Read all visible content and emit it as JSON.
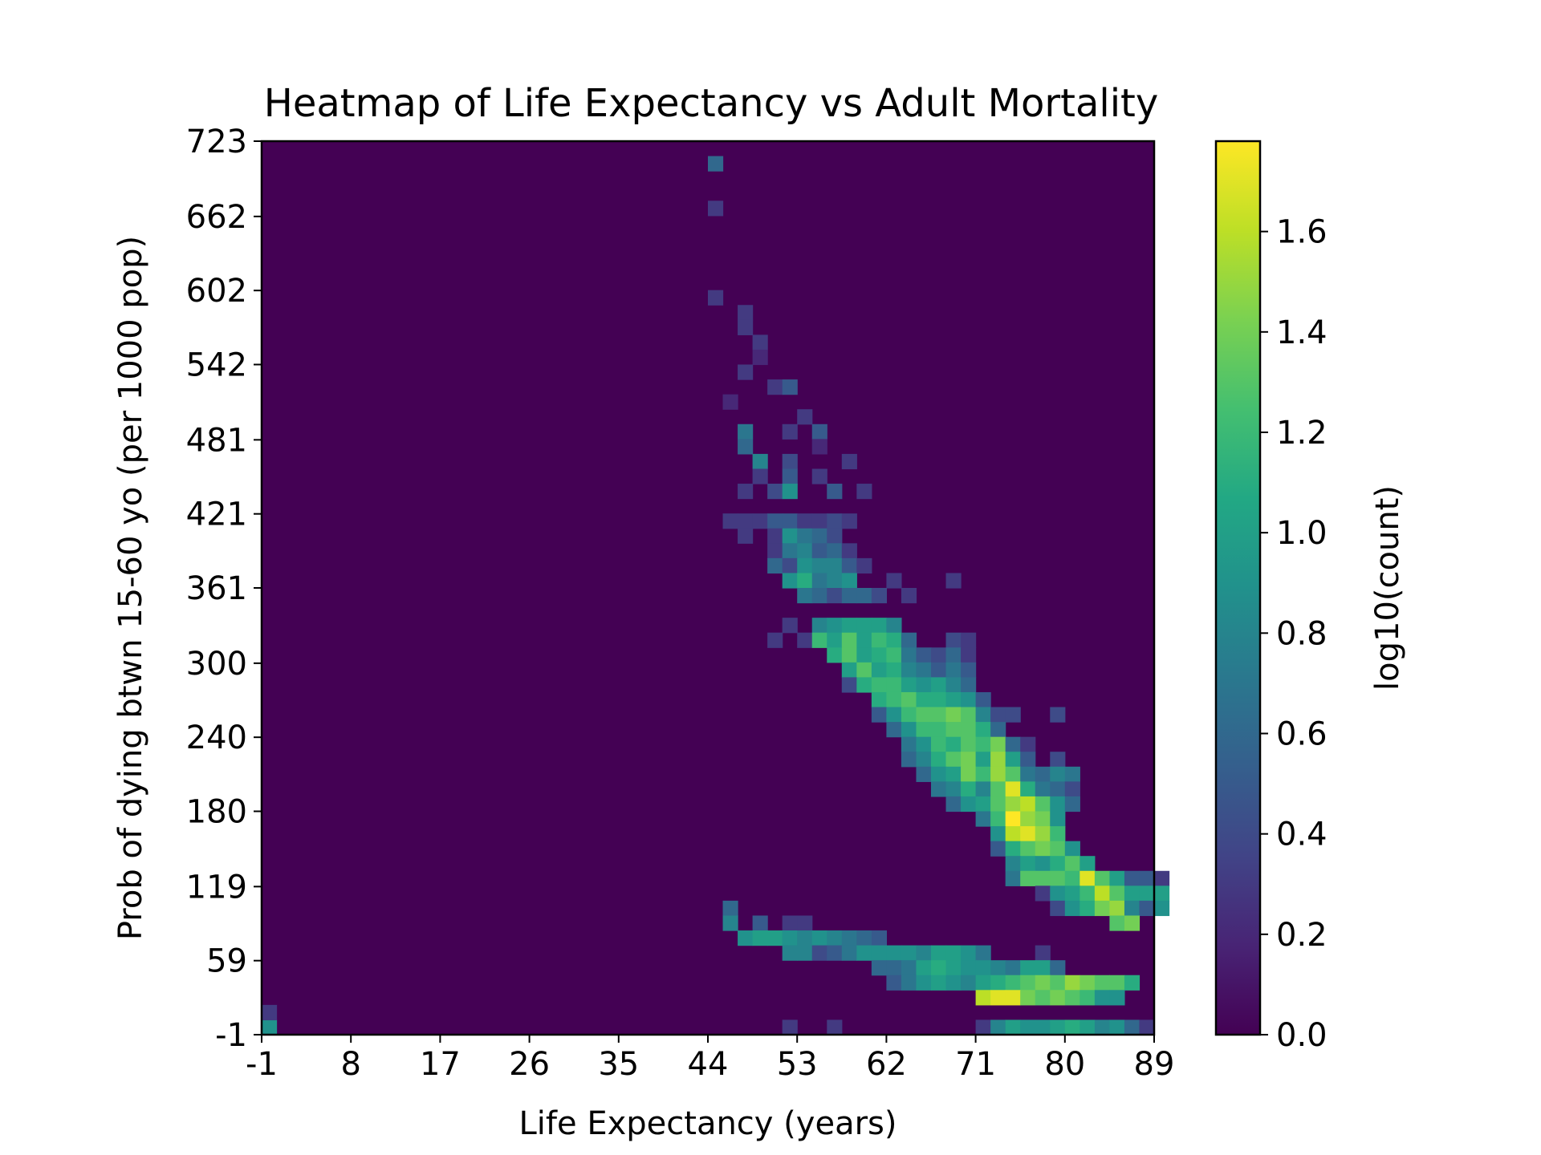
{
  "chart_data": {
    "type": "heatmap",
    "title": "Heatmap of Life Expectancy vs Adult Mortality",
    "xlabel": "Life Expectancy (years)",
    "ylabel": "Prob of dying btwn 15-60 yo (per 1000 pop)",
    "xlim": [
      -1,
      89
    ],
    "ylim": [
      -1,
      723
    ],
    "x_ticks": [
      "-1",
      "8",
      "17",
      "26",
      "35",
      "44",
      "53",
      "62",
      "71",
      "80",
      "89"
    ],
    "y_ticks": [
      "-1",
      "59",
      "119",
      "180",
      "240",
      "300",
      "361",
      "421",
      "481",
      "542",
      "602",
      "662",
      "723"
    ],
    "bins": [
      60,
      60
    ],
    "bin_width_x": 1.5,
    "bin_width_y": 12.07,
    "value_transform": "log10(count)",
    "cells_note": "each cell = [x_bin_index, y_bin_index, log10(count)] , x bin i spans -1+1.5*i years, y bin j spans -1+12.07*j deaths per 1000",
    "cells": [
      [
        30,
        58,
        0.6
      ],
      [
        30,
        55,
        0.3
      ],
      [
        30,
        49,
        0.3
      ],
      [
        32,
        48,
        0.3
      ],
      [
        32,
        47,
        0.3
      ],
      [
        33,
        46,
        0.3
      ],
      [
        33,
        45,
        0.2
      ],
      [
        32,
        44,
        0.3
      ],
      [
        34,
        43,
        0.3
      ],
      [
        35,
        43,
        0.5
      ],
      [
        31,
        42,
        0.2
      ],
      [
        36,
        41,
        0.3
      ],
      [
        35,
        40,
        0.3
      ],
      [
        37,
        40,
        0.5
      ],
      [
        37,
        39,
        0.2
      ],
      [
        32,
        40,
        0.7
      ],
      [
        32,
        39,
        0.6
      ],
      [
        33,
        38,
        0.8
      ],
      [
        35,
        38,
        0.4
      ],
      [
        33,
        37,
        0.3
      ],
      [
        35,
        37,
        0.5
      ],
      [
        37,
        37,
        0.3
      ],
      [
        39,
        38,
        0.3
      ],
      [
        32,
        36,
        0.3
      ],
      [
        34,
        36,
        0.4
      ],
      [
        35,
        36,
        0.9
      ],
      [
        38,
        36,
        0.5
      ],
      [
        40,
        36,
        0.3
      ],
      [
        31,
        34,
        0.3
      ],
      [
        32,
        34,
        0.3
      ],
      [
        33,
        34,
        0.3
      ],
      [
        34,
        34,
        0.5
      ],
      [
        35,
        34,
        0.5
      ],
      [
        36,
        34,
        0.3
      ],
      [
        37,
        34,
        0.3
      ],
      [
        38,
        34,
        0.4
      ],
      [
        39,
        34,
        0.3
      ],
      [
        32,
        33,
        0.3
      ],
      [
        34,
        33,
        0.3
      ],
      [
        35,
        33,
        0.9
      ],
      [
        36,
        33,
        0.7
      ],
      [
        37,
        33,
        0.6
      ],
      [
        38,
        33,
        0.4
      ],
      [
        34,
        32,
        0.3
      ],
      [
        35,
        32,
        0.7
      ],
      [
        36,
        32,
        0.8
      ],
      [
        37,
        32,
        0.5
      ],
      [
        38,
        32,
        0.6
      ],
      [
        39,
        32,
        0.3
      ],
      [
        34,
        31,
        0.6
      ],
      [
        35,
        31,
        0.4
      ],
      [
        36,
        31,
        0.9
      ],
      [
        37,
        31,
        0.8
      ],
      [
        38,
        31,
        0.8
      ],
      [
        39,
        31,
        0.5
      ],
      [
        40,
        31,
        0.3
      ],
      [
        35,
        30,
        0.9
      ],
      [
        36,
        30,
        1.1
      ],
      [
        37,
        30,
        0.7
      ],
      [
        38,
        30,
        0.8
      ],
      [
        39,
        30,
        0.9
      ],
      [
        42,
        30,
        0.3
      ],
      [
        46,
        30,
        0.3
      ],
      [
        36,
        29,
        0.7
      ],
      [
        37,
        29,
        0.6
      ],
      [
        38,
        29,
        0.4
      ],
      [
        39,
        29,
        0.6
      ],
      [
        40,
        29,
        0.6
      ],
      [
        41,
        29,
        0.4
      ],
      [
        43,
        29,
        0.3
      ],
      [
        35,
        27,
        0.3
      ],
      [
        37,
        27,
        0.8
      ],
      [
        38,
        27,
        0.9
      ],
      [
        39,
        27,
        1.0
      ],
      [
        40,
        27,
        1.0
      ],
      [
        41,
        27,
        1.0
      ],
      [
        42,
        27,
        0.8
      ],
      [
        34,
        26,
        0.3
      ],
      [
        36,
        26,
        0.3
      ],
      [
        37,
        26,
        1.2
      ],
      [
        38,
        26,
        1.0
      ],
      [
        39,
        26,
        1.3
      ],
      [
        40,
        26,
        1.0
      ],
      [
        41,
        26,
        1.2
      ],
      [
        42,
        26,
        1.1
      ],
      [
        43,
        26,
        0.6
      ],
      [
        46,
        26,
        0.4
      ],
      [
        47,
        26,
        0.3
      ],
      [
        38,
        25,
        1.1
      ],
      [
        39,
        25,
        1.3
      ],
      [
        40,
        25,
        1.0
      ],
      [
        41,
        25,
        1.1
      ],
      [
        42,
        25,
        1.2
      ],
      [
        43,
        25,
        0.7
      ],
      [
        44,
        25,
        0.5
      ],
      [
        45,
        25,
        0.4
      ],
      [
        46,
        25,
        0.6
      ],
      [
        47,
        25,
        0.3
      ],
      [
        39,
        24,
        1.0
      ],
      [
        40,
        24,
        1.3
      ],
      [
        41,
        24,
        1.0
      ],
      [
        42,
        24,
        1.1
      ],
      [
        43,
        24,
        0.8
      ],
      [
        44,
        24,
        0.7
      ],
      [
        45,
        24,
        0.5
      ],
      [
        46,
        24,
        0.7
      ],
      [
        47,
        24,
        0.5
      ],
      [
        39,
        23,
        0.4
      ],
      [
        40,
        23,
        1.1
      ],
      [
        41,
        23,
        1.2
      ],
      [
        42,
        23,
        1.2
      ],
      [
        43,
        23,
        1.0
      ],
      [
        44,
        23,
        0.9
      ],
      [
        45,
        23,
        1.0
      ],
      [
        46,
        23,
        0.8
      ],
      [
        47,
        23,
        0.6
      ],
      [
        41,
        22,
        1.1
      ],
      [
        42,
        22,
        1.2
      ],
      [
        43,
        22,
        1.3
      ],
      [
        44,
        22,
        1.1
      ],
      [
        45,
        22,
        1.1
      ],
      [
        46,
        22,
        1.0
      ],
      [
        47,
        22,
        0.9
      ],
      [
        48,
        22,
        0.5
      ],
      [
        41,
        21,
        0.5
      ],
      [
        42,
        21,
        0.9
      ],
      [
        43,
        21,
        1.2
      ],
      [
        44,
        21,
        1.3
      ],
      [
        45,
        21,
        1.3
      ],
      [
        46,
        21,
        1.4
      ],
      [
        47,
        21,
        1.3
      ],
      [
        48,
        21,
        0.8
      ],
      [
        49,
        21,
        0.4
      ],
      [
        50,
        21,
        0.4
      ],
      [
        53,
        21,
        0.4
      ],
      [
        42,
        20,
        0.6
      ],
      [
        43,
        20,
        0.9
      ],
      [
        44,
        20,
        1.2
      ],
      [
        45,
        20,
        1.2
      ],
      [
        46,
        20,
        1.3
      ],
      [
        47,
        20,
        1.3
      ],
      [
        48,
        20,
        1.1
      ],
      [
        49,
        20,
        0.6
      ],
      [
        43,
        19,
        0.7
      ],
      [
        44,
        19,
        0.9
      ],
      [
        45,
        19,
        1.2
      ],
      [
        46,
        19,
        1.1
      ],
      [
        47,
        19,
        1.3
      ],
      [
        48,
        19,
        1.2
      ],
      [
        49,
        19,
        1.4
      ],
      [
        50,
        19,
        0.6
      ],
      [
        51,
        19,
        0.3
      ],
      [
        43,
        18,
        0.6
      ],
      [
        44,
        18,
        0.8
      ],
      [
        45,
        18,
        1.1
      ],
      [
        46,
        18,
        1.3
      ],
      [
        47,
        18,
        1.4
      ],
      [
        48,
        18,
        1.0
      ],
      [
        49,
        18,
        1.5
      ],
      [
        50,
        18,
        1.0
      ],
      [
        51,
        18,
        0.5
      ],
      [
        53,
        18,
        0.4
      ],
      [
        44,
        17,
        0.6
      ],
      [
        45,
        17,
        0.9
      ],
      [
        46,
        17,
        1.0
      ],
      [
        47,
        17,
        1.4
      ],
      [
        48,
        17,
        1.2
      ],
      [
        49,
        17,
        1.5
      ],
      [
        50,
        17,
        1.3
      ],
      [
        51,
        17,
        0.7
      ],
      [
        52,
        17,
        0.6
      ],
      [
        53,
        17,
        0.8
      ],
      [
        54,
        17,
        0.7
      ],
      [
        45,
        16,
        0.7
      ],
      [
        46,
        16,
        0.8
      ],
      [
        47,
        16,
        1.1
      ],
      [
        48,
        16,
        0.8
      ],
      [
        49,
        16,
        1.3
      ],
      [
        50,
        16,
        1.7
      ],
      [
        51,
        16,
        1.1
      ],
      [
        52,
        16,
        0.7
      ],
      [
        53,
        16,
        0.6
      ],
      [
        54,
        16,
        0.4
      ],
      [
        46,
        15,
        0.6
      ],
      [
        47,
        15,
        0.9
      ],
      [
        48,
        15,
        1.0
      ],
      [
        49,
        15,
        1.3
      ],
      [
        50,
        15,
        1.5
      ],
      [
        51,
        15,
        1.6
      ],
      [
        52,
        15,
        1.3
      ],
      [
        53,
        15,
        0.9
      ],
      [
        54,
        15,
        0.6
      ],
      [
        48,
        14,
        0.7
      ],
      [
        49,
        14,
        1.2
      ],
      [
        50,
        14,
        1.8
      ],
      [
        51,
        14,
        1.5
      ],
      [
        52,
        14,
        1.4
      ],
      [
        53,
        14,
        0.9
      ],
      [
        49,
        13,
        0.9
      ],
      [
        50,
        13,
        1.6
      ],
      [
        51,
        13,
        1.7
      ],
      [
        52,
        13,
        1.5
      ],
      [
        53,
        13,
        1.2
      ],
      [
        49,
        12,
        0.5
      ],
      [
        50,
        12,
        1.1
      ],
      [
        51,
        12,
        1.3
      ],
      [
        52,
        12,
        1.4
      ],
      [
        53,
        12,
        1.3
      ],
      [
        54,
        12,
        0.9
      ],
      [
        50,
        11,
        0.8
      ],
      [
        51,
        11,
        1.0
      ],
      [
        52,
        11,
        0.9
      ],
      [
        53,
        11,
        1.1
      ],
      [
        54,
        11,
        1.3
      ],
      [
        55,
        11,
        1.0
      ],
      [
        50,
        10,
        0.7
      ],
      [
        51,
        10,
        1.3
      ],
      [
        52,
        10,
        1.3
      ],
      [
        53,
        10,
        1.3
      ],
      [
        54,
        10,
        1.2
      ],
      [
        55,
        10,
        1.7
      ],
      [
        56,
        10,
        1.3
      ],
      [
        57,
        10,
        1.0
      ],
      [
        58,
        10,
        0.5
      ],
      [
        59,
        10,
        0.5
      ],
      [
        60,
        10,
        0.3
      ],
      [
        52,
        9,
        0.3
      ],
      [
        53,
        9,
        0.9
      ],
      [
        54,
        9,
        1.0
      ],
      [
        55,
        9,
        1.2
      ],
      [
        56,
        9,
        1.6
      ],
      [
        57,
        9,
        1.3
      ],
      [
        58,
        9,
        1.0
      ],
      [
        59,
        9,
        1.0
      ],
      [
        60,
        9,
        1.0
      ],
      [
        31,
        8,
        0.6
      ],
      [
        53,
        8,
        0.4
      ],
      [
        54,
        8,
        0.9
      ],
      [
        55,
        8,
        1.1
      ],
      [
        56,
        8,
        1.4
      ],
      [
        57,
        8,
        1.5
      ],
      [
        58,
        8,
        0.8
      ],
      [
        59,
        8,
        0.5
      ],
      [
        60,
        8,
        0.9
      ],
      [
        31,
        7,
        0.8
      ],
      [
        33,
        7,
        0.5
      ],
      [
        35,
        7,
        0.3
      ],
      [
        36,
        7,
        0.3
      ],
      [
        57,
        7,
        1.3
      ],
      [
        58,
        7,
        1.4
      ],
      [
        32,
        6,
        0.9
      ],
      [
        33,
        6,
        1.0
      ],
      [
        34,
        6,
        1.0
      ],
      [
        35,
        6,
        0.9
      ],
      [
        36,
        6,
        0.8
      ],
      [
        37,
        6,
        0.9
      ],
      [
        38,
        6,
        0.8
      ],
      [
        39,
        6,
        0.7
      ],
      [
        40,
        6,
        0.6
      ],
      [
        41,
        6,
        0.5
      ],
      [
        35,
        5,
        0.8
      ],
      [
        36,
        5,
        0.8
      ],
      [
        37,
        5,
        0.4
      ],
      [
        38,
        5,
        0.5
      ],
      [
        39,
        5,
        0.7
      ],
      [
        40,
        5,
        0.9
      ],
      [
        41,
        5,
        0.9
      ],
      [
        42,
        5,
        0.9
      ],
      [
        43,
        5,
        0.9
      ],
      [
        44,
        5,
        0.8
      ],
      [
        45,
        5,
        1.0
      ],
      [
        46,
        5,
        1.0
      ],
      [
        47,
        5,
        0.9
      ],
      [
        48,
        5,
        0.7
      ],
      [
        52,
        5,
        0.3
      ],
      [
        41,
        4,
        0.6
      ],
      [
        42,
        4,
        0.6
      ],
      [
        43,
        4,
        0.7
      ],
      [
        44,
        4,
        1.0
      ],
      [
        45,
        4,
        1.1
      ],
      [
        46,
        4,
        1.0
      ],
      [
        47,
        4,
        0.9
      ],
      [
        48,
        4,
        0.9
      ],
      [
        49,
        4,
        0.8
      ],
      [
        50,
        4,
        0.7
      ],
      [
        51,
        4,
        1.0
      ],
      [
        52,
        4,
        1.0
      ],
      [
        53,
        4,
        0.6
      ],
      [
        42,
        3,
        0.5
      ],
      [
        43,
        3,
        0.7
      ],
      [
        44,
        3,
        0.9
      ],
      [
        45,
        3,
        1.0
      ],
      [
        46,
        3,
        0.9
      ],
      [
        47,
        3,
        0.8
      ],
      [
        48,
        3,
        1.0
      ],
      [
        49,
        3,
        1.1
      ],
      [
        50,
        3,
        1.2
      ],
      [
        51,
        3,
        1.3
      ],
      [
        52,
        3,
        1.4
      ],
      [
        53,
        3,
        1.3
      ],
      [
        54,
        3,
        1.5
      ],
      [
        55,
        3,
        1.4
      ],
      [
        56,
        3,
        1.3
      ],
      [
        57,
        3,
        1.3
      ],
      [
        58,
        3,
        1.1
      ],
      [
        48,
        2,
        1.6
      ],
      [
        49,
        2,
        1.7
      ],
      [
        50,
        2,
        1.7
      ],
      [
        51,
        2,
        1.4
      ],
      [
        52,
        2,
        1.3
      ],
      [
        53,
        2,
        1.4
      ],
      [
        54,
        2,
        1.3
      ],
      [
        55,
        2,
        1.2
      ],
      [
        56,
        2,
        0.9
      ],
      [
        57,
        2,
        0.9
      ],
      [
        0,
        0,
        0.9
      ],
      [
        35,
        0,
        0.3
      ],
      [
        38,
        0,
        0.3
      ],
      [
        48,
        0,
        0.3
      ],
      [
        49,
        0,
        0.8
      ],
      [
        50,
        0,
        1.0
      ],
      [
        51,
        0,
        0.9
      ],
      [
        52,
        0,
        0.9
      ],
      [
        53,
        0,
        1.0
      ],
      [
        54,
        0,
        1.1
      ],
      [
        55,
        0,
        1.0
      ],
      [
        56,
        0,
        0.8
      ],
      [
        57,
        0,
        0.9
      ],
      [
        58,
        0,
        0.6
      ],
      [
        59,
        0,
        0.3
      ],
      [
        0,
        1,
        0.3
      ]
    ],
    "colorbar": {
      "label": "log10(count)",
      "min": 0.0,
      "max": 1.78,
      "ticks": [
        "0.0",
        "0.2",
        "0.4",
        "0.6",
        "0.8",
        "1.0",
        "1.2",
        "1.4",
        "1.6"
      ],
      "colormap": "viridis"
    },
    "grid": false,
    "legend": "none"
  }
}
